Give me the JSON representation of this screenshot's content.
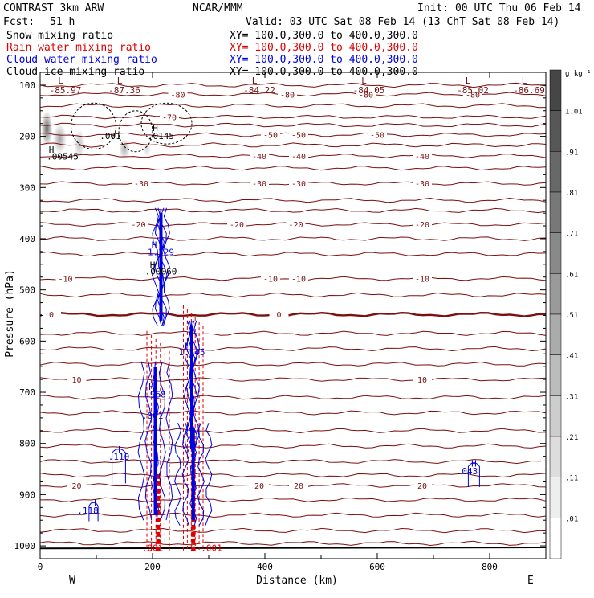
{
  "header": {
    "model": "CONTRAST  3km ARW",
    "center": "NCAR/MMM",
    "init": "Init: 00 UTC Thu 06 Feb 14",
    "fcst_label": "Fcst:",
    "fcst_value": "51 h",
    "valid": "Valid: 03 UTC Sat 08 Feb 14 (13 ChT Sat 08 Feb 14)"
  },
  "fields": [
    {
      "name": "Snow mixing ratio",
      "xy": "XY= 100.0,300.0 to 400.0,300.0",
      "color": "#000000"
    },
    {
      "name": "Rain water mixing ratio",
      "xy": "XY= 100.0,300.0 to 400.0,300.0",
      "color": "#e00000"
    },
    {
      "name": "Cloud water mixing ratio",
      "xy": "XY= 100.0,300.0 to 400.0,300.0",
      "color": "#0000e0"
    },
    {
      "name": "Cloud ice mixing ratio",
      "xy": "XY= 100.0,300.0 to 400.0,300.0",
      "color": "#000000"
    }
  ],
  "colorbar": {
    "unit": "g kg⁻¹",
    "labels": [
      "1.01",
      ".91",
      ".81",
      ".71",
      ".61",
      ".51",
      ".41",
      ".31",
      ".21",
      ".11",
      ".01"
    ]
  },
  "chart_data": {
    "type": "contour",
    "xlabel": "Distance (km)",
    "ylabel": "Pressure (hPa)",
    "xlim": [
      0,
      900
    ],
    "ylim": [
      1025,
      75
    ],
    "x_ticks": [
      0,
      200,
      400,
      600,
      800
    ],
    "y_ticks": [
      100,
      200,
      300,
      400,
      500,
      600,
      700,
      800,
      900,
      1000
    ],
    "west_label": "W",
    "east_label": "E",
    "temperature_contours": [
      {
        "value": -80,
        "label": "-80",
        "p": 118,
        "label_x": [
          245,
          440,
          580,
          770
        ]
      },
      {
        "value": -70,
        "label": "-70",
        "p": 162,
        "label_x": [
          230
        ]
      },
      {
        "value": -50,
        "label": "-50",
        "p": 197,
        "label_x": [
          410,
          460,
          600
        ]
      },
      {
        "value": -40,
        "label": "-40",
        "p": 238,
        "label_x": [
          390,
          460,
          680
        ]
      },
      {
        "value": -30,
        "label": "-30",
        "p": 292,
        "label_x": [
          180,
          390,
          460,
          680
        ]
      },
      {
        "value": -20,
        "label": "-20",
        "p": 372,
        "label_x": [
          175,
          350,
          455,
          680
        ]
      },
      {
        "value": -10,
        "label": "-10",
        "p": 478,
        "label_x": [
          45,
          410,
          460,
          680
        ]
      },
      {
        "value": 0,
        "label": "0",
        "p": 548,
        "label_x": [
          20,
          425
        ]
      },
      {
        "value": 10,
        "label": "10",
        "p": 675,
        "label_x": [
          65,
          680
        ]
      },
      {
        "value": 20,
        "label": "20",
        "p": 882,
        "label_x": [
          65,
          390,
          460,
          680
        ]
      }
    ],
    "extra_isotherms_p": [
      100,
      140,
      178,
      217,
      262,
      325,
      345,
      400,
      430,
      510,
      585,
      615,
      645,
      710,
      740,
      775,
      805,
      835,
      862,
      910,
      940,
      970,
      995
    ],
    "frame_low_labels": [
      {
        "text": "-85.97",
        "x": 45
      },
      {
        "text": "-87.36",
        "x": 150
      },
      {
        "text": "-84.22",
        "x": 390
      },
      {
        "text": "-84.05",
        "x": 585
      },
      {
        "text": "-85.02",
        "x": 770
      },
      {
        "text": "-86.69",
        "x": 870
      }
    ],
    "value_labels": [
      {
        "text": ".001",
        "x": 125,
        "p": 205,
        "color": "#000000"
      },
      {
        "text": ".0145",
        "x": 215,
        "p": 205,
        "color": "#000000"
      },
      {
        "text": ".00545",
        "x": 40,
        "p": 245,
        "color": "#000000"
      },
      {
        "text": "1.329",
        "x": 215,
        "p": 432,
        "color": "#0000e0"
      },
      {
        "text": ".00060",
        "x": 215,
        "p": 470,
        "color": "#000000"
      },
      {
        "text": "1.545",
        "x": 270,
        "p": 628,
        "color": "#0000e0"
      },
      {
        "text": ".968",
        "x": 205,
        "p": 710,
        "color": "#0000e0"
      },
      {
        "text": ".001",
        "x": 200,
        "p": 752,
        "color": "#0000e0"
      },
      {
        "text": ".110",
        "x": 140,
        "p": 832,
        "color": "#0000e0"
      },
      {
        "text": ".043",
        "x": 760,
        "p": 860,
        "color": "#0000e0"
      },
      {
        "text": ".118",
        "x": 85,
        "p": 937,
        "color": "#0000e0"
      },
      {
        "text": ".001",
        "x": 200,
        "p": 1010,
        "color": "#e00000"
      },
      {
        "text": ".001",
        "x": 305,
        "p": 1010,
        "color": "#e00000"
      }
    ],
    "high_markers": [
      {
        "text": "H",
        "x": 205,
        "p": 190,
        "color": "#000000"
      },
      {
        "text": "H",
        "x": 20,
        "p": 232,
        "color": "#000000"
      },
      {
        "text": "H",
        "x": 203,
        "p": 418,
        "color": "#0000e0"
      },
      {
        "text": "H",
        "x": 200,
        "p": 457,
        "color": "#000000"
      },
      {
        "text": "H",
        "x": 262,
        "p": 616,
        "color": "#0000e0"
      },
      {
        "text": "H",
        "x": 198,
        "p": 695,
        "color": "#0000e0"
      },
      {
        "text": "H",
        "x": 138,
        "p": 818,
        "color": "#0000e0"
      },
      {
        "text": "H",
        "x": 772,
        "p": 845,
        "color": "#0000e0"
      },
      {
        "text": "H",
        "x": 95,
        "p": 922,
        "color": "#0000e0"
      }
    ],
    "snow_shading": [
      {
        "x": 12,
        "p": 185,
        "rx": 10,
        "rp": 35,
        "opacity": 0.75
      },
      {
        "x": 35,
        "p": 205,
        "rx": 12,
        "rp": 30,
        "opacity": 0.45
      },
      {
        "x": 70,
        "p": 215,
        "rx": 10,
        "rp": 30,
        "opacity": 0.3
      },
      {
        "x": 150,
        "p": 225,
        "rx": 10,
        "rp": 20,
        "opacity": 0.4
      },
      {
        "x": 190,
        "p": 225,
        "rx": 8,
        "rp": 15,
        "opacity": 0.2
      }
    ],
    "cloud_water_columns": [
      {
        "x0": 205,
        "x1": 225,
        "p0": 340,
        "p1": 570
      },
      {
        "x0": 180,
        "x1": 230,
        "p0": 640,
        "p1": 950
      },
      {
        "x0": 262,
        "x1": 278,
        "p0": 560,
        "p1": 820
      },
      {
        "x0": 245,
        "x1": 300,
        "p0": 760,
        "p1": 960
      }
    ],
    "rain_columns": [
      {
        "x0": 190,
        "x1": 230,
        "p0": 580,
        "p1": 1010
      },
      {
        "x0": 255,
        "x1": 290,
        "p0": 530,
        "p1": 1010
      }
    ]
  }
}
